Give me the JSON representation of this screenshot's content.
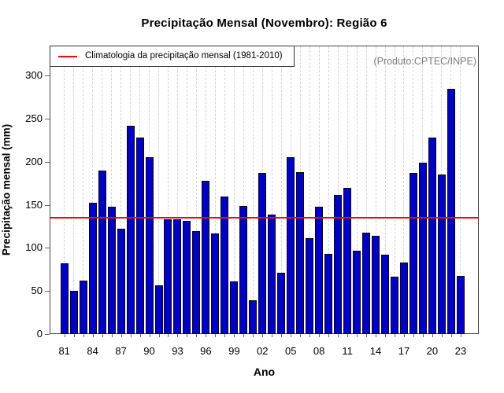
{
  "legend": {
    "label": "Climatologia da precipitação mensal (1981-2010)"
  },
  "annotation": {
    "text": "(Produto:CPTEC/INPE)"
  },
  "chart_data": {
    "type": "bar",
    "title": "Precipitação Mensal (Novembro): Região 6",
    "xlabel": "Ano",
    "ylabel": "Precipitação mensal (mm)",
    "ylim": [
      0,
      335
    ],
    "yticks": [
      0,
      50,
      100,
      150,
      200,
      250,
      300
    ],
    "grid": "vertical-dashed",
    "legend_position": "top-left",
    "climatology_value": 135,
    "bar_color": "#0000cc",
    "line_color": "#fe0000",
    "years": [
      1981,
      1982,
      1983,
      1984,
      1985,
      1986,
      1987,
      1988,
      1989,
      1990,
      1991,
      1992,
      1993,
      1994,
      1995,
      1996,
      1997,
      1998,
      1999,
      2000,
      2001,
      2002,
      2003,
      2004,
      2005,
      2006,
      2007,
      2008,
      2009,
      2010,
      2011,
      2012,
      2013,
      2014,
      2015,
      2016,
      2017,
      2018,
      2019,
      2020,
      2021,
      2022,
      2023
    ],
    "x_tick_labels": [
      "81",
      "84",
      "87",
      "90",
      "93",
      "96",
      "99",
      "02",
      "05",
      "08",
      "11",
      "14",
      "17",
      "20",
      "23"
    ],
    "values": [
      82,
      50,
      62,
      152,
      190,
      148,
      122,
      242,
      228,
      205,
      57,
      133,
      133,
      131,
      120,
      178,
      117,
      160,
      61,
      149,
      39,
      187,
      139,
      71,
      205,
      188,
      111,
      148,
      93,
      162,
      170,
      97,
      118,
      114,
      92,
      67,
      83,
      187,
      199,
      228,
      185,
      285,
      68
    ]
  }
}
